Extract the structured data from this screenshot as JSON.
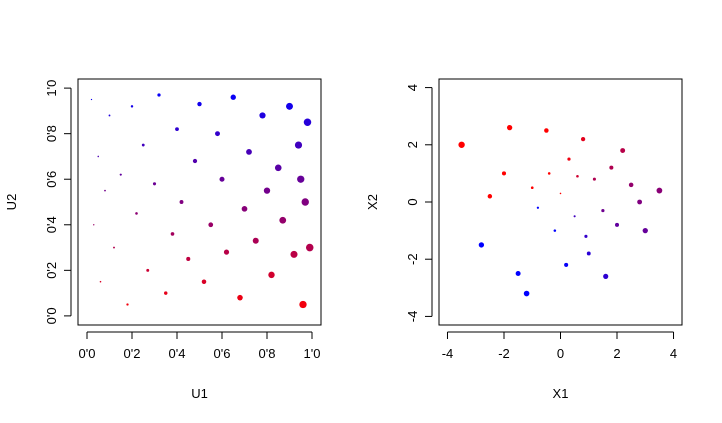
{
  "chart_data": [
    {
      "type": "scatter",
      "title": "",
      "xlabel": "U1",
      "ylabel": "U2",
      "xlim": [
        -0.04,
        1.04
      ],
      "ylim": [
        -0.04,
        1.04
      ],
      "x_ticks": [
        0,
        0.2,
        0.4,
        0.6,
        0.8,
        1.0
      ],
      "y_ticks": [
        0,
        0.2,
        0.4,
        0.6,
        0.8,
        1.0
      ],
      "x_tick_labels": [
        "0'0",
        "0'2",
        "0'4",
        "0'6",
        "0'8",
        "1'0"
      ],
      "y_tick_labels": [
        "0'0",
        "0'2",
        "0'4",
        "0'6",
        "0'8",
        "1'0"
      ],
      "grid": false,
      "color_scale": {
        "low": "#ff0000",
        "high": "#0000ff",
        "mapped_from": "U2"
      },
      "point_size_increases_with": "U1",
      "points": [
        [
          0.02,
          0.95
        ],
        [
          0.05,
          0.7
        ],
        [
          0.03,
          0.4
        ],
        [
          0.06,
          0.15
        ],
        [
          0.08,
          0.55
        ],
        [
          0.1,
          0.88
        ],
        [
          0.12,
          0.3
        ],
        [
          0.15,
          0.62
        ],
        [
          0.18,
          0.05
        ],
        [
          0.2,
          0.92
        ],
        [
          0.22,
          0.45
        ],
        [
          0.25,
          0.75
        ],
        [
          0.27,
          0.2
        ],
        [
          0.3,
          0.58
        ],
        [
          0.32,
          0.97
        ],
        [
          0.35,
          0.1
        ],
        [
          0.38,
          0.36
        ],
        [
          0.4,
          0.82
        ],
        [
          0.42,
          0.5
        ],
        [
          0.45,
          0.25
        ],
        [
          0.48,
          0.68
        ],
        [
          0.5,
          0.93
        ],
        [
          0.52,
          0.15
        ],
        [
          0.55,
          0.4
        ],
        [
          0.58,
          0.8
        ],
        [
          0.6,
          0.6
        ],
        [
          0.62,
          0.28
        ],
        [
          0.65,
          0.96
        ],
        [
          0.68,
          0.08
        ],
        [
          0.7,
          0.47
        ],
        [
          0.72,
          0.72
        ],
        [
          0.75,
          0.33
        ],
        [
          0.78,
          0.88
        ],
        [
          0.8,
          0.55
        ],
        [
          0.82,
          0.18
        ],
        [
          0.85,
          0.65
        ],
        [
          0.87,
          0.42
        ],
        [
          0.9,
          0.92
        ],
        [
          0.92,
          0.27
        ],
        [
          0.94,
          0.75
        ],
        [
          0.96,
          0.05
        ],
        [
          0.97,
          0.5
        ],
        [
          0.98,
          0.85
        ],
        [
          0.99,
          0.3
        ],
        [
          0.95,
          0.6
        ]
      ]
    },
    {
      "type": "scatter",
      "title": "",
      "xlabel": "X1",
      "ylabel": "X2",
      "xlim": [
        -4.3,
        4.3
      ],
      "ylim": [
        -4.3,
        4.3
      ],
      "x_ticks": [
        -4,
        -2,
        0,
        2,
        4
      ],
      "y_ticks": [
        -4,
        -2,
        0,
        2,
        4
      ],
      "x_tick_labels": [
        "-4",
        "-2",
        "0",
        "2",
        "4"
      ],
      "y_tick_labels": [
        "-4",
        "-2",
        "0",
        "2",
        "4"
      ],
      "grid": false,
      "color_scale": {
        "low": "#ff0000",
        "high": "#0000ff",
        "mapped_from": "U2"
      },
      "point_size_increases_with": "U1",
      "points": [
        [
          -3.5,
          2.0
        ],
        [
          -2.8,
          -1.5
        ],
        [
          -2.0,
          1.0
        ],
        [
          -1.5,
          -2.5
        ],
        [
          -1.0,
          0.5
        ],
        [
          -0.5,
          2.5
        ],
        [
          -0.2,
          -1.0
        ],
        [
          0.0,
          0.3
        ],
        [
          0.3,
          1.5
        ],
        [
          0.5,
          -0.5
        ],
        [
          0.8,
          2.2
        ],
        [
          1.0,
          -1.8
        ],
        [
          1.2,
          0.8
        ],
        [
          1.5,
          -0.3
        ],
        [
          1.8,
          1.2
        ],
        [
          2.0,
          -0.8
        ],
        [
          2.5,
          0.6
        ],
        [
          3.0,
          -1.0
        ],
        [
          3.5,
          0.4
        ],
        [
          -0.8,
          -0.2
        ],
        [
          -1.8,
          2.6
        ],
        [
          0.6,
          0.9
        ],
        [
          0.2,
          -2.2
        ],
        [
          2.2,
          1.8
        ],
        [
          -2.5,
          0.2
        ],
        [
          1.6,
          -2.6
        ],
        [
          -0.4,
          1.0
        ],
        [
          0.9,
          -1.2
        ],
        [
          2.8,
          0.0
        ],
        [
          -1.2,
          -3.2
        ]
      ]
    }
  ]
}
